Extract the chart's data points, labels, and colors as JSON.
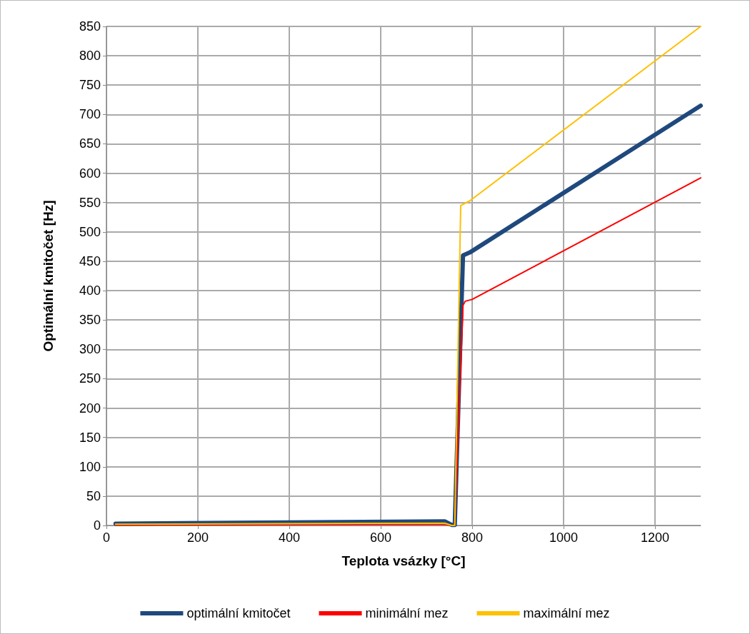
{
  "chart_data": {
    "type": "line",
    "xlabel": "Teplota vsázky [°C]",
    "ylabel": "Optimální kmitočet [Hz]",
    "xlim": [
      0,
      1300
    ],
    "xticks": [
      0,
      200,
      400,
      600,
      800,
      1000,
      1200
    ],
    "ylim": [
      0,
      850
    ],
    "yticks": [
      0,
      50,
      100,
      150,
      200,
      250,
      300,
      350,
      400,
      450,
      500,
      550,
      600,
      650,
      700,
      750,
      800,
      850
    ],
    "grid": true,
    "legend": "bottom",
    "marker": "none",
    "line_style": "solid",
    "series": [
      {
        "name": "optimální kmitočet",
        "color": "#1f497d",
        "x": [
          20,
          740,
          755,
          762,
          780,
          795,
          1300
        ],
        "values": [
          3,
          7,
          1,
          1,
          460,
          465,
          715
        ]
      },
      {
        "name": "minimální mez",
        "color": "#ff0000",
        "x": [
          20,
          740,
          755,
          762,
          780,
          785,
          800,
          1300
        ],
        "values": [
          1,
          2,
          0,
          0,
          375,
          382,
          385,
          592
        ]
      },
      {
        "name": "maximální mez",
        "color": "#ffc000",
        "x": [
          20,
          740,
          755,
          762,
          775,
          795,
          1300
        ],
        "values": [
          2,
          4,
          0,
          0,
          545,
          553,
          850
        ]
      }
    ]
  }
}
